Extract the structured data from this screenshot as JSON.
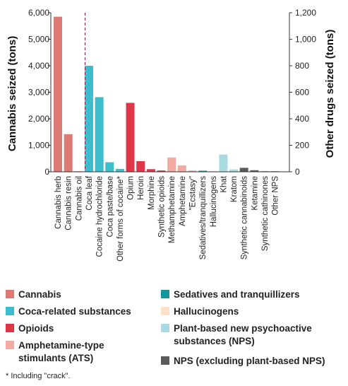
{
  "chart_data": {
    "type": "bar",
    "ylabel_left": "Cannabis seized (tons)",
    "ylabel_right": "Other drugs seized (tons)",
    "ylim_left": [
      0,
      6000
    ],
    "ylim_right": [
      0,
      1200
    ],
    "yticks_left": [
      "0",
      "1,000",
      "2,000",
      "3,000",
      "4,000",
      "5,000",
      "6,000"
    ],
    "yticks_right": [
      "0",
      "200",
      "400",
      "600",
      "800",
      "1,000",
      "1,200"
    ],
    "categories": [
      {
        "label": "Cannabis herb",
        "value": 5850,
        "axis": "left",
        "group": "cannabis"
      },
      {
        "label": "Cannabis resin",
        "value": 1420,
        "axis": "left",
        "group": "cannabis"
      },
      {
        "label": "Cannabis oil",
        "value": 5,
        "axis": "left",
        "group": "cannabis"
      },
      {
        "label": "Coca leaf",
        "value": 800,
        "axis": "right",
        "group": "coca"
      },
      {
        "label": "Cocaine hydrochloride",
        "value": 563,
        "axis": "right",
        "group": "coca"
      },
      {
        "label": "Coca paste/base",
        "value": 72,
        "axis": "right",
        "group": "coca"
      },
      {
        "label": "Other forms of cocaine*",
        "value": 22,
        "axis": "right",
        "group": "coca"
      },
      {
        "label": "Opium",
        "value": 520,
        "axis": "right",
        "group": "opioids"
      },
      {
        "label": "Heroin",
        "value": 80,
        "axis": "right",
        "group": "opioids"
      },
      {
        "label": "Morphine",
        "value": 20,
        "axis": "right",
        "group": "opioids"
      },
      {
        "label": "Synthetic opioids",
        "value": 10,
        "axis": "right",
        "group": "opioids"
      },
      {
        "label": "Methamphetamine",
        "value": 108,
        "axis": "right",
        "group": "ats"
      },
      {
        "label": "Amphetamine",
        "value": 48,
        "axis": "right",
        "group": "ats"
      },
      {
        "label": "\"Ecstasy\"",
        "value": 10,
        "axis": "right",
        "group": "ats"
      },
      {
        "label": "Sedatives/tranquillizers",
        "value": 8,
        "axis": "right",
        "group": "sedatives"
      },
      {
        "label": "Hallucinogens",
        "value": 3,
        "axis": "right",
        "group": "hallucinogens"
      },
      {
        "label": "Khat",
        "value": 130,
        "axis": "right",
        "group": "plant_nps"
      },
      {
        "label": "Kratom",
        "value": 18,
        "axis": "right",
        "group": "plant_nps"
      },
      {
        "label": "Synthetic cannabinoids",
        "value": 30,
        "axis": "right",
        "group": "nps"
      },
      {
        "label": "Ketamine",
        "value": 12,
        "axis": "right",
        "group": "nps"
      },
      {
        "label": "Synthetic cathinones",
        "value": 3,
        "axis": "right",
        "group": "nps"
      },
      {
        "label": "Other NPS",
        "value": 3,
        "axis": "right",
        "group": "nps"
      }
    ],
    "grid": false
  },
  "groups": {
    "cannabis": {
      "name": "Cannabis",
      "color": "#de7a74"
    },
    "coca": {
      "name": "Coca-related substances",
      "color": "#3cbccc"
    },
    "opioids": {
      "name": "Opioids",
      "color": "#df3648"
    },
    "ats": {
      "name": "Amphetamine-type stimulants (ATS)",
      "color": "#f3aaa0"
    },
    "sedatives": {
      "name": "Sedatives and tranquillizers",
      "color": "#12979a"
    },
    "hallucinogens": {
      "name": "Hallucinogens",
      "color": "#fbe1c8"
    },
    "plant_nps": {
      "name": "Plant-based new psychoactive substances (NPS)",
      "color": "#a9dce1"
    },
    "nps": {
      "name": "NPS (excluding plant-based NPS)",
      "color": "#5b5b5b"
    }
  },
  "legend_order": [
    "cannabis",
    "sedatives",
    "coca",
    "hallucinogens",
    "opioids",
    "plant_nps",
    "ats",
    "nps"
  ],
  "footnote": "* Including \"crack\"."
}
